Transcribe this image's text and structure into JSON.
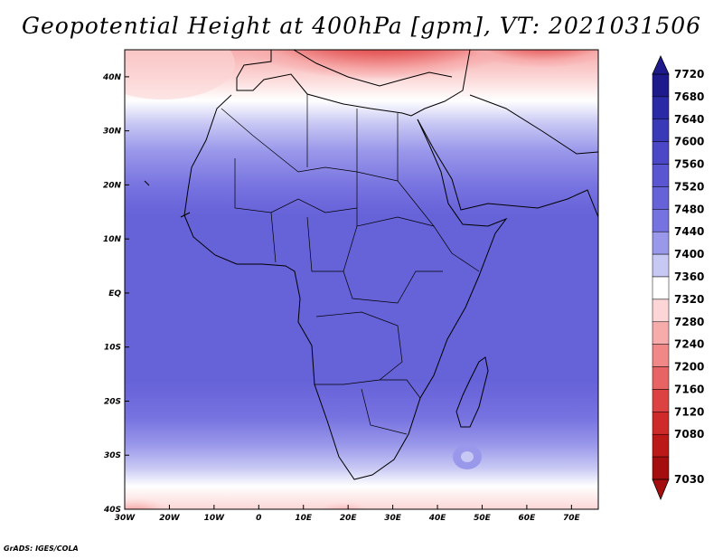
{
  "title": "Geopotential Height at 400hPa [gpm], VT: 2021031506",
  "credit": "GrADS: IGES/COLA",
  "x_ticks": [
    "30W",
    "20W",
    "10W",
    "0",
    "10E",
    "20E",
    "30E",
    "40E",
    "50E",
    "60E",
    "70E"
  ],
  "y_ticks": [
    "40N",
    "30N",
    "20N",
    "10N",
    "EQ",
    "10S",
    "20S",
    "30S",
    "40S"
  ],
  "colorbar": {
    "labels": [
      "7720",
      "7680",
      "7640",
      "7600",
      "7560",
      "7520",
      "7480",
      "7440",
      "7400",
      "7360",
      "7320",
      "7280",
      "7240",
      "7200",
      "7160",
      "7120",
      "7080",
      "7030"
    ],
    "colors": [
      "#1e1a8c",
      "#2a2aa6",
      "#3a3ab8",
      "#4b47c6",
      "#5a55d0",
      "#6662d8",
      "#7672e0",
      "#9a98ea",
      "#c8c8f4",
      "#ffffff",
      "#fcd6d6",
      "#f7acac",
      "#f08888",
      "#e86464",
      "#dd4242",
      "#cf2a2a",
      "#bb1818",
      "#a40e0e"
    ]
  },
  "map": {
    "projection": "lat-lon",
    "lon_range": [
      -30,
      76
    ],
    "lat_range": [
      -40,
      45
    ]
  }
}
